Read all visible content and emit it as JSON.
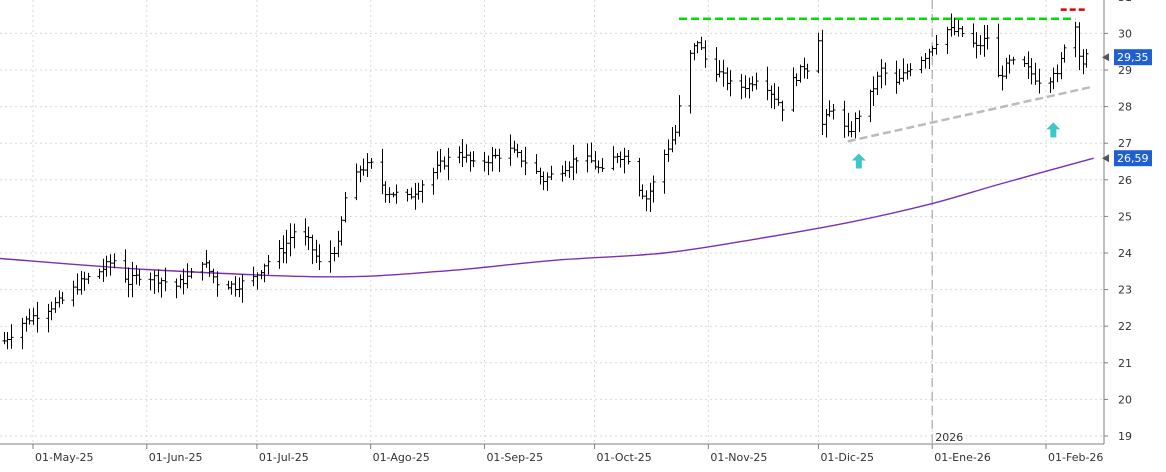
{
  "chart_data": {
    "type": "ohlc",
    "title": "",
    "xlabel": "",
    "ylabel": "",
    "ylim": [
      18.8,
      31
    ],
    "grid": true,
    "y_ticks": [
      19,
      20,
      21,
      22,
      23,
      24,
      25,
      26,
      27,
      28,
      29,
      30,
      31
    ],
    "x_ticks": [
      {
        "date": "2025-05-01",
        "label": "01-May-25"
      },
      {
        "date": "2025-06-01",
        "label": "01-Jun-25"
      },
      {
        "date": "2025-07-01",
        "label": "01-Jul-25"
      },
      {
        "date": "2025-08-01",
        "label": "01-Ago-25"
      },
      {
        "date": "2025-09-01",
        "label": "01-Sep-25"
      },
      {
        "date": "2025-10-01",
        "label": "01-Oct-25"
      },
      {
        "date": "2025-11-01",
        "label": "01-Nov-25"
      },
      {
        "date": "2025-12-01",
        "label": "01-Dic-25"
      },
      {
        "date": "2026-01-01",
        "label": "01-Ene-26"
      },
      {
        "date": "2026-02-01",
        "label": "01-Feb-26"
      }
    ],
    "year_marker": {
      "date": "2026-01-01",
      "label": "2026"
    },
    "price_path": [
      [
        "2025-04-23",
        21.6
      ],
      [
        "2025-04-28",
        22.1
      ],
      [
        "2025-05-05",
        22.5
      ],
      [
        "2025-05-09",
        22.7
      ],
      [
        "2025-05-14",
        23.2
      ],
      [
        "2025-05-19",
        23.5
      ],
      [
        "2025-05-23",
        23.8
      ],
      [
        "2025-05-27",
        23.2
      ],
      [
        "2025-05-30",
        23.4
      ],
      [
        "2025-06-04",
        23.3
      ],
      [
        "2025-06-09",
        23.1
      ],
      [
        "2025-06-13",
        23.4
      ],
      [
        "2025-06-16",
        23.8
      ],
      [
        "2025-06-20",
        23.2
      ],
      [
        "2025-06-25",
        23.1
      ],
      [
        "2025-06-30",
        23.3
      ],
      [
        "2025-07-03",
        23.7
      ],
      [
        "2025-07-08",
        24.1
      ],
      [
        "2025-07-11",
        24.6
      ],
      [
        "2025-07-15",
        24.3
      ],
      [
        "2025-07-18",
        23.7
      ],
      [
        "2025-07-23",
        24.2
      ],
      [
        "2025-07-25",
        25.5
      ],
      [
        "2025-07-29",
        26.3
      ],
      [
        "2025-08-01",
        26.4
      ],
      [
        "2025-08-05",
        25.7
      ],
      [
        "2025-08-11",
        25.5
      ],
      [
        "2025-08-15",
        25.9
      ],
      [
        "2025-08-20",
        26.4
      ],
      [
        "2025-08-25",
        26.8
      ],
      [
        "2025-08-29",
        26.4
      ],
      [
        "2025-09-03",
        26.6
      ],
      [
        "2025-09-08",
        26.8
      ],
      [
        "2025-09-12",
        26.5
      ],
      [
        "2025-09-17",
        26.0
      ],
      [
        "2025-09-22",
        26.3
      ],
      [
        "2025-09-26",
        26.6
      ],
      [
        "2025-09-30",
        26.5
      ],
      [
        "2025-10-03",
        26.2
      ],
      [
        "2025-10-07",
        26.7
      ],
      [
        "2025-10-10",
        26.6
      ],
      [
        "2025-10-13",
        25.8
      ],
      [
        "2025-10-15",
        25.5
      ],
      [
        "2025-10-17",
        25.9
      ],
      [
        "2025-10-20",
        26.7
      ],
      [
        "2025-10-23",
        27.3
      ],
      [
        "2025-10-25",
        28.6
      ],
      [
        "2025-10-27",
        29.4
      ],
      [
        "2025-10-29",
        29.8
      ],
      [
        "2025-10-31",
        29.3
      ],
      [
        "2025-11-04",
        28.9
      ],
      [
        "2025-11-08",
        28.5
      ],
      [
        "2025-11-12",
        28.6
      ],
      [
        "2025-11-15",
        28.9
      ],
      [
        "2025-11-18",
        28.4
      ],
      [
        "2025-11-21",
        28.0
      ],
      [
        "2025-11-24",
        28.7
      ],
      [
        "2025-11-27",
        29.1
      ],
      [
        "2025-11-30",
        29.0
      ],
      [
        "2025-12-01",
        29.9
      ],
      [
        "2025-12-02",
        27.5
      ],
      [
        "2025-12-05",
        28.0
      ],
      [
        "2025-12-09",
        27.2
      ],
      [
        "2025-12-12",
        27.8
      ],
      [
        "2025-12-15",
        28.3
      ],
      [
        "2025-12-18",
        29.0
      ],
      [
        "2025-12-22",
        28.6
      ],
      [
        "2025-12-26",
        29.1
      ],
      [
        "2025-12-30",
        29.4
      ],
      [
        "2026-01-02",
        29.8
      ],
      [
        "2026-01-05",
        30.1
      ],
      [
        "2026-01-09",
        30.0
      ],
      [
        "2026-01-13",
        29.6
      ],
      [
        "2026-01-16",
        29.9
      ],
      [
        "2026-01-19",
        28.8
      ],
      [
        "2026-01-22",
        29.2
      ],
      [
        "2026-01-26",
        29.1
      ],
      [
        "2026-01-29",
        28.8
      ],
      [
        "2026-02-01",
        28.6
      ],
      [
        "2026-02-03",
        29.0
      ],
      [
        "2026-02-04",
        28.8
      ],
      [
        "2026-02-06",
        29.7
      ],
      [
        "2026-02-09",
        30.2
      ],
      [
        "2026-02-10",
        29.5
      ],
      [
        "2026-02-11",
        29.2
      ],
      [
        "2026-02-12",
        29.35
      ]
    ],
    "moving_average": {
      "color": "#7b2fb8",
      "points": [
        [
          "2025-04-22",
          23.85
        ],
        [
          "2025-06-01",
          23.55
        ],
        [
          "2025-07-20",
          23.35
        ],
        [
          "2025-08-20",
          23.5
        ],
        [
          "2025-09-20",
          23.8
        ],
        [
          "2025-10-20",
          24.0
        ],
        [
          "2025-11-15",
          24.4
        ],
        [
          "2025-12-10",
          24.85
        ],
        [
          "2026-01-01",
          25.35
        ],
        [
          "2026-01-20",
          25.9
        ],
        [
          "2026-02-14",
          26.59
        ]
      ]
    },
    "annotations": {
      "resistance": {
        "from": "2025-10-24",
        "to": "2026-02-09",
        "value": 30.4,
        "color": "#00dd00"
      },
      "recent_high": {
        "from": "2026-02-05",
        "to": "2026-02-12",
        "value": 30.65,
        "color": "#dd0000"
      },
      "support_trend": {
        "from": [
          "2025-12-09",
          27.05
        ],
        "to": [
          "2026-02-14",
          28.55
        ],
        "color": "#bbbbbb"
      },
      "arrows": [
        {
          "date": "2025-12-12",
          "value": 26.5,
          "color": "#3cc8c8"
        },
        {
          "date": "2026-02-03",
          "value": 27.35,
          "color": "#3cc8c8"
        }
      ]
    },
    "price_labels": [
      {
        "text": "29,35",
        "value": 29.35,
        "color": "#1f5fd0"
      },
      {
        "text": "26,59",
        "value": 26.59,
        "color": "#1f5fd0"
      }
    ]
  }
}
